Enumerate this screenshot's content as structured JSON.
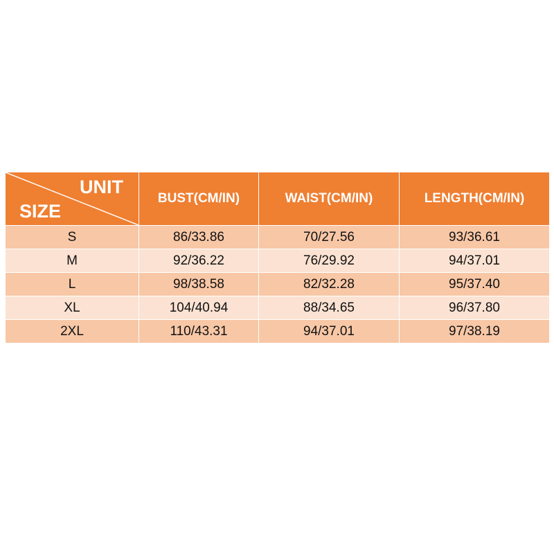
{
  "header": {
    "corner_top": "UNIT",
    "corner_bottom": "SIZE",
    "columns": [
      "BUST(CM/IN)",
      "WAIST(CM/IN)",
      "LENGTH(CM/IN)"
    ]
  },
  "rows": [
    {
      "size": "S",
      "bust": "86/33.86",
      "waist": "70/27.56",
      "length": "93/36.61"
    },
    {
      "size": "M",
      "bust": "92/36.22",
      "waist": "76/29.92",
      "length": "94/37.01"
    },
    {
      "size": "L",
      "bust": "98/38.58",
      "waist": "82/32.28",
      "length": "95/37.40"
    },
    {
      "size": "XL",
      "bust": "104/40.94",
      "waist": "88/34.65",
      "length": "96/37.80"
    },
    {
      "size": "2XL",
      "bust": "110/43.31",
      "waist": "94/37.01",
      "length": "97/38.19"
    }
  ],
  "colors": {
    "header": "#ef7f31",
    "row_odd": "#f8c7a6",
    "row_even": "#fbe2d2"
  }
}
